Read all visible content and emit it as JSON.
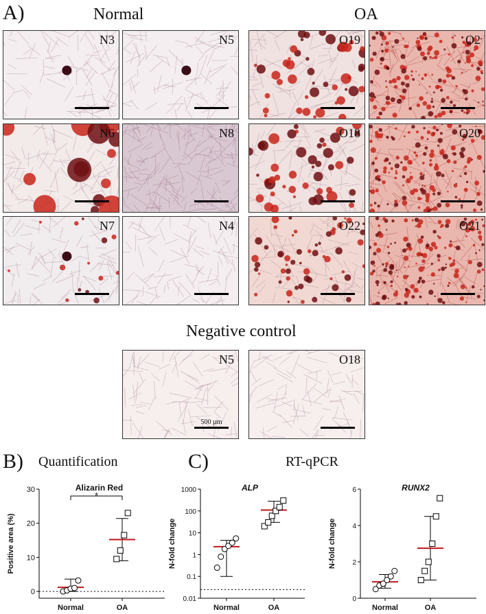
{
  "panel_a": {
    "letter": "A)",
    "normal_title": "Normal",
    "oa_title": "OA",
    "negative_title": "Negative control",
    "scale_bar_label": "500 µm",
    "tiles": [
      {
        "label": "N3",
        "stain": "faint"
      },
      {
        "label": "N5",
        "stain": "faint"
      },
      {
        "label": "O19",
        "stain": "strong"
      },
      {
        "label": "O2",
        "stain": "diffuse"
      },
      {
        "label": "N6",
        "stain": "nodules"
      },
      {
        "label": "N8",
        "stain": "lilac"
      },
      {
        "label": "O18",
        "stain": "strong"
      },
      {
        "label": "O20",
        "stain": "diffuse"
      },
      {
        "label": "N7",
        "stain": "sparse"
      },
      {
        "label": "N4",
        "stain": "faint"
      },
      {
        "label": "O22",
        "stain": "moderate"
      },
      {
        "label": "O21",
        "stain": "diffuse"
      }
    ],
    "negative_tiles": [
      {
        "label": "N5",
        "stain": "negative"
      },
      {
        "label": "O18",
        "stain": "negative"
      }
    ]
  },
  "panel_b": {
    "letter": "B)",
    "title": "Quantification"
  },
  "panel_c": {
    "letter": "C)",
    "title": "RT-qPCR"
  },
  "colors": {
    "mean_line": "#c0161a",
    "stain_red": "#c8261a",
    "stain_dark": "#6e0f12"
  },
  "chart_data": [
    {
      "type": "scatter",
      "title": "Alizarin Red",
      "ylabel": "Positive area (%)",
      "categories": [
        "Normal",
        "OA"
      ],
      "ylim": [
        -2,
        30
      ],
      "yticks": [
        "0",
        "10",
        "20",
        "30"
      ],
      "series": [
        {
          "values": [
            0.0,
            0.3,
            0.8,
            1.0,
            3.2
          ],
          "marker": "circle"
        },
        {
          "values": [
            9.5,
            12.0,
            16.5,
            23.0
          ],
          "marker": "square"
        }
      ],
      "mean": [
        1.2,
        15.2
      ],
      "sd_upper": [
        3.6,
        21.4
      ],
      "sd_lower": [
        0,
        9.0
      ],
      "baseline": 0,
      "annotation": "*"
    },
    {
      "type": "scatter",
      "title": "ALP",
      "ylabel": "N-fold change",
      "categories": [
        "Normal",
        "OA"
      ],
      "ylim": [
        0.01,
        1000
      ],
      "log_scale": true,
      "yticks": [
        "0.01",
        "0.1",
        "1",
        "10",
        "100",
        "1000"
      ],
      "series": [
        {
          "values": [
            0.25,
            0.8,
            1.8,
            2.5,
            3.5,
            5.5
          ],
          "marker": "circle"
        },
        {
          "values": [
            20,
            30,
            60,
            100,
            150,
            300
          ],
          "marker": "square"
        }
      ],
      "mean": [
        2.3,
        110
      ],
      "sd_upper": [
        4.5,
        280
      ],
      "sd_lower": [
        0.1,
        30
      ],
      "baseline": 0.025
    },
    {
      "type": "scatter",
      "title": "RUNX2",
      "ylabel": "N-fold change",
      "categories": [
        "Normal",
        "OA"
      ],
      "ylim": [
        0,
        6
      ],
      "yticks": [
        "0",
        "2",
        "4",
        "6"
      ],
      "series": [
        {
          "values": [
            0.5,
            0.7,
            0.8,
            1.0,
            1.2,
            1.5
          ],
          "marker": "circle"
        },
        {
          "values": [
            1.0,
            1.5,
            2.0,
            3.0,
            4.5,
            5.5
          ],
          "marker": "square"
        }
      ],
      "mean": [
        0.9,
        2.75
      ],
      "sd_upper": [
        1.3,
        4.5
      ],
      "sd_lower": [
        0.55,
        1.0
      ]
    }
  ]
}
